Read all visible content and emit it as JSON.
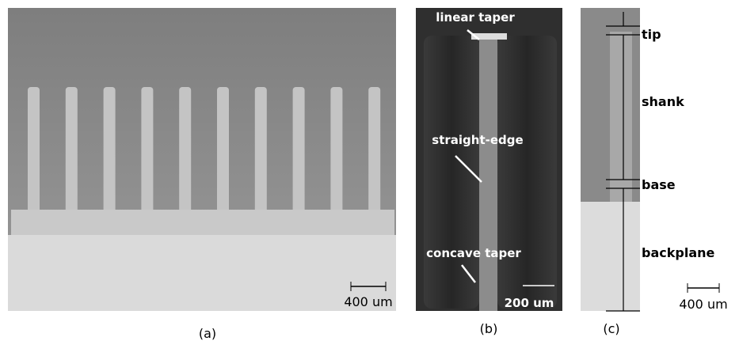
{
  "panels": [
    {
      "caption": "(a)",
      "scale_bar": "400 um"
    },
    {
      "caption": "(b)",
      "scale_bar": "200 um",
      "annotations": [
        "linear taper",
        "straight-edge",
        "concave taper"
      ]
    },
    {
      "caption": "(c)",
      "scale_bar": "400 um",
      "annotations": [
        "tip",
        "shank",
        "base",
        "backplane"
      ]
    }
  ]
}
